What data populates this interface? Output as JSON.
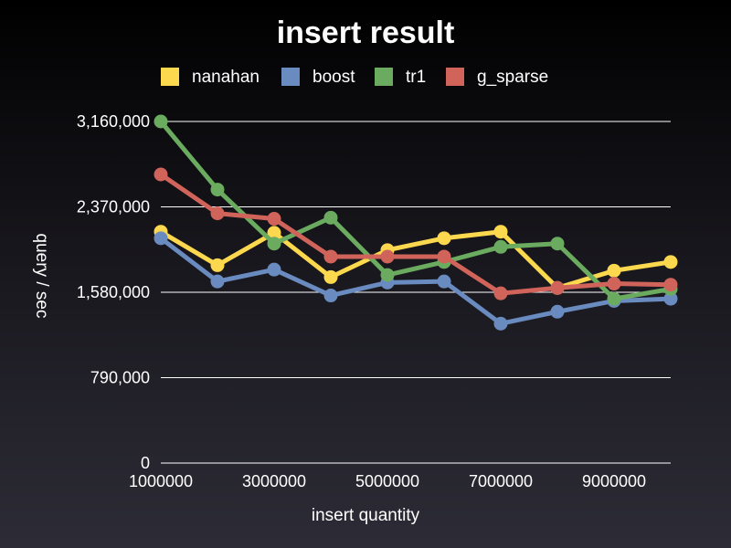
{
  "chart_data": {
    "type": "line",
    "title": "insert result",
    "xlabel": "insert quantity",
    "ylabel": "query / sec",
    "x": [
      1000000,
      2000000,
      3000000,
      4000000,
      5000000,
      6000000,
      7000000,
      8000000,
      9000000,
      10000000
    ],
    "xlim": [
      1000000,
      10000000
    ],
    "xticks": [
      1000000,
      3000000,
      5000000,
      7000000,
      9000000
    ],
    "xtick_labels": [
      "1000000",
      "3000000",
      "5000000",
      "7000000",
      "9000000"
    ],
    "ylim": [
      0,
      3160000
    ],
    "yticks": [
      0,
      790000,
      1580000,
      2370000,
      3160000
    ],
    "ytick_labels": [
      "0",
      "790,000",
      "1,580,000",
      "2,370,000",
      "3,160,000"
    ],
    "grid": "horizontal",
    "legend_position": "top",
    "series": [
      {
        "name": "nanahan",
        "color": "#fcd84e",
        "values": [
          2140000,
          1830000,
          2130000,
          1720000,
          1970000,
          2080000,
          2140000,
          1620000,
          1780000,
          1860000
        ]
      },
      {
        "name": "boost",
        "color": "#6a8bbf",
        "values": [
          2080000,
          1680000,
          1790000,
          1550000,
          1670000,
          1680000,
          1290000,
          1400000,
          1500000,
          1520000
        ]
      },
      {
        "name": "tr1",
        "color": "#6aab5f",
        "values": [
          3160000,
          2530000,
          2030000,
          2270000,
          1740000,
          1860000,
          2000000,
          2030000,
          1520000,
          1610000
        ]
      },
      {
        "name": "g_sparse",
        "color": "#d1645a",
        "values": [
          2670000,
          2310000,
          2260000,
          1910000,
          1910000,
          1910000,
          1570000,
          1620000,
          1660000,
          1650000
        ]
      }
    ]
  }
}
